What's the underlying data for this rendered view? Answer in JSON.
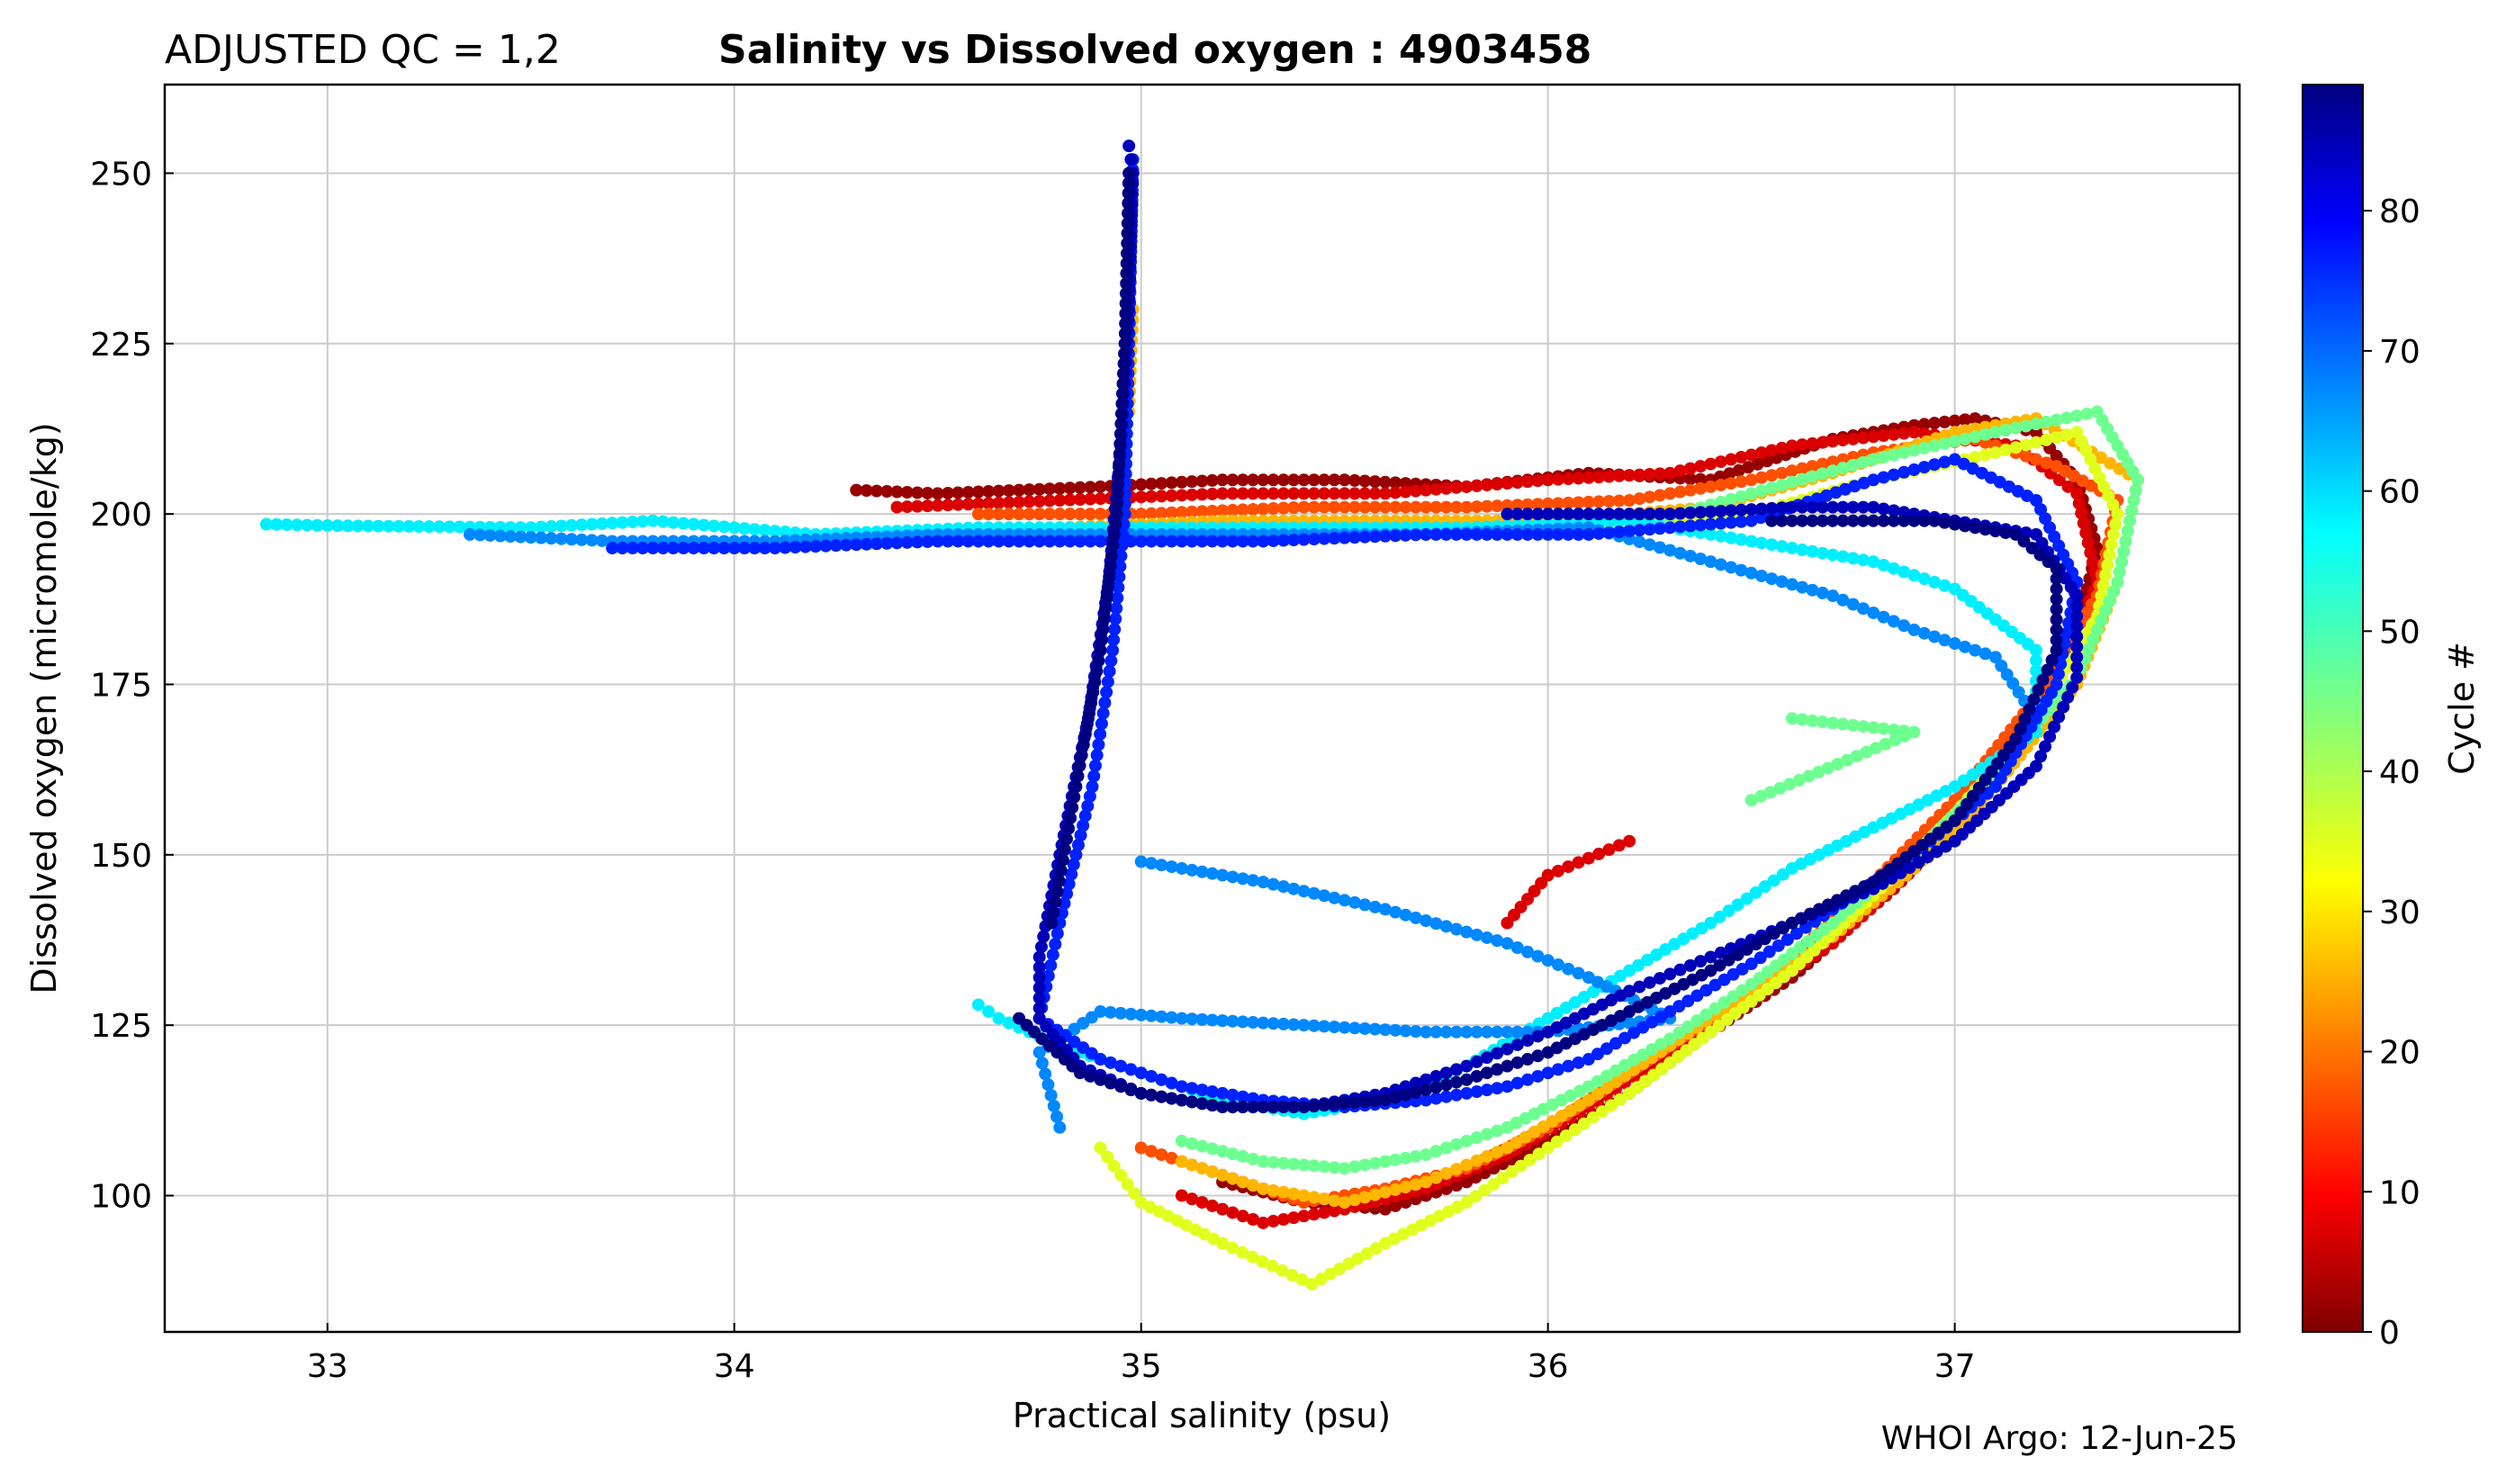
{
  "chart_data": {
    "type": "scatter",
    "title_left": "ADJUSTED QC = 1,2",
    "title": "Salinity vs Dissolved oxygen : 4903458",
    "xlabel": "Practical salinity  (psu)",
    "ylabel": "Dissolved oxygen  (micromole/kg)",
    "credit": "WHOI Argo: 12-Jun-25",
    "xlim": [
      32.6,
      37.7
    ],
    "ylim": [
      80,
      263
    ],
    "xticks": [
      33,
      34,
      35,
      36,
      37
    ],
    "yticks": [
      100,
      125,
      150,
      175,
      200,
      225,
      250
    ],
    "grid": true,
    "colorbar": {
      "label": "Cycle #",
      "colormap": "jet_r",
      "range": [
        0,
        89
      ],
      "ticks": [
        0,
        10,
        20,
        30,
        40,
        50,
        60,
        70,
        80
      ]
    },
    "series": [
      {
        "cycle": 2,
        "points": [
          [
            34.3,
            203.5
          ],
          [
            34.5,
            203
          ],
          [
            34.9,
            204
          ],
          [
            35.2,
            205
          ],
          [
            35.5,
            205
          ],
          [
            35.8,
            204
          ],
          [
            36.1,
            206
          ],
          [
            36.4,
            205
          ],
          [
            36.7,
            211
          ],
          [
            36.9,
            213
          ],
          [
            37.05,
            214
          ],
          [
            37.2,
            212
          ],
          [
            37.3,
            205
          ],
          [
            37.35,
            195
          ],
          [
            37.3,
            183
          ],
          [
            37.2,
            170
          ],
          [
            37.05,
            157
          ],
          [
            36.85,
            145
          ],
          [
            36.6,
            132
          ],
          [
            36.4,
            124
          ],
          [
            36.2,
            115
          ],
          [
            36.0,
            108
          ],
          [
            35.8,
            102
          ],
          [
            35.6,
            98
          ],
          [
            35.4,
            99
          ],
          [
            35.2,
            102
          ]
        ]
      },
      {
        "cycle": 8,
        "points": [
          [
            34.4,
            201
          ],
          [
            34.8,
            202
          ],
          [
            35.2,
            203
          ],
          [
            35.6,
            203
          ],
          [
            36.0,
            205
          ],
          [
            36.3,
            206
          ],
          [
            36.6,
            210
          ],
          [
            36.9,
            212
          ],
          [
            37.15,
            210
          ],
          [
            37.3,
            203
          ],
          [
            37.35,
            190
          ],
          [
            37.25,
            175
          ],
          [
            37.1,
            160
          ],
          [
            36.9,
            148
          ],
          [
            36.7,
            137
          ],
          [
            36.5,
            129
          ],
          [
            36.3,
            121
          ],
          [
            36.1,
            113
          ],
          [
            35.9,
            106
          ],
          [
            35.7,
            101
          ],
          [
            35.5,
            98
          ],
          [
            35.3,
            96
          ],
          [
            35.1,
            100
          ],
          [
            36.2,
            152
          ],
          [
            36.0,
            147
          ],
          [
            35.9,
            140
          ]
        ]
      },
      {
        "cycle": 18,
        "points": [
          [
            34.6,
            200
          ],
          [
            35.0,
            200
          ],
          [
            35.4,
            201
          ],
          [
            35.8,
            201
          ],
          [
            36.2,
            202
          ],
          [
            36.5,
            205
          ],
          [
            36.8,
            209
          ],
          [
            37.05,
            211
          ],
          [
            37.25,
            207
          ],
          [
            37.4,
            202
          ],
          [
            37.35,
            188
          ],
          [
            37.2,
            173
          ],
          [
            37.0,
            158
          ],
          [
            36.8,
            146
          ],
          [
            36.6,
            135
          ],
          [
            36.4,
            126
          ],
          [
            36.2,
            118
          ],
          [
            36.0,
            110
          ],
          [
            35.8,
            104
          ],
          [
            35.6,
            101
          ],
          [
            35.4,
            99
          ],
          [
            35.2,
            103
          ],
          [
            35.0,
            107
          ]
        ]
      },
      {
        "cycle": 27,
        "points": [
          [
            34.8,
            198
          ],
          [
            35.2,
            199
          ],
          [
            35.6,
            199
          ],
          [
            36.0,
            199
          ],
          [
            36.4,
            201
          ],
          [
            36.7,
            206
          ],
          [
            37.0,
            212
          ],
          [
            37.2,
            214
          ],
          [
            37.45,
            205
          ],
          [
            37.4,
            190
          ],
          [
            37.3,
            175
          ],
          [
            37.1,
            160
          ],
          [
            36.9,
            148
          ],
          [
            36.7,
            138
          ],
          [
            36.5,
            130
          ],
          [
            36.3,
            122
          ],
          [
            36.1,
            114
          ],
          [
            35.9,
            107
          ],
          [
            35.7,
            102
          ],
          [
            35.5,
            99
          ],
          [
            35.3,
            101
          ],
          [
            35.1,
            105
          ],
          [
            34.98,
            230
          ],
          [
            34.97,
            215
          ]
        ]
      },
      {
        "cycle": 36,
        "points": [
          [
            35.3,
            197
          ],
          [
            35.7,
            197
          ],
          [
            36.1,
            198
          ],
          [
            36.5,
            200
          ],
          [
            36.8,
            205
          ],
          [
            37.1,
            209
          ],
          [
            37.3,
            212
          ],
          [
            37.4,
            200
          ],
          [
            37.35,
            185
          ],
          [
            37.2,
            170
          ],
          [
            37.0,
            156
          ],
          [
            36.8,
            144
          ],
          [
            36.6,
            133
          ],
          [
            36.4,
            124
          ],
          [
            36.2,
            115
          ],
          [
            36.0,
            107
          ],
          [
            35.8,
            99
          ],
          [
            35.6,
            93
          ],
          [
            35.42,
            87
          ],
          [
            35.2,
            93
          ],
          [
            35.0,
            99
          ],
          [
            34.9,
            107
          ]
        ]
      },
      {
        "cycle": 46,
        "points": [
          [
            35.8,
            198
          ],
          [
            36.2,
            198
          ],
          [
            36.5,
            203
          ],
          [
            36.8,
            208
          ],
          [
            37.1,
            212
          ],
          [
            37.35,
            215
          ],
          [
            37.45,
            205
          ],
          [
            37.4,
            190
          ],
          [
            37.3,
            176
          ],
          [
            37.1,
            162
          ],
          [
            36.9,
            150
          ],
          [
            36.7,
            140
          ],
          [
            36.5,
            131
          ],
          [
            36.3,
            123
          ],
          [
            36.1,
            116
          ],
          [
            35.9,
            110
          ],
          [
            35.7,
            106
          ],
          [
            35.5,
            104
          ],
          [
            35.3,
            105
          ],
          [
            35.1,
            108
          ],
          [
            36.6,
            170
          ],
          [
            36.9,
            168
          ],
          [
            36.5,
            158
          ]
        ]
      },
      {
        "cycle": 57,
        "points": [
          [
            32.85,
            198.5
          ],
          [
            33.0,
            198.3
          ],
          [
            33.5,
            198
          ],
          [
            33.8,
            199
          ],
          [
            34.2,
            197
          ],
          [
            34.6,
            198
          ],
          [
            35.0,
            198
          ],
          [
            35.4,
            198
          ],
          [
            35.8,
            198
          ],
          [
            36.2,
            199
          ],
          [
            36.5,
            196
          ],
          [
            36.8,
            193
          ],
          [
            37.0,
            189
          ],
          [
            37.2,
            180
          ],
          [
            37.2,
            168
          ],
          [
            37.0,
            160
          ],
          [
            36.8,
            154
          ],
          [
            36.6,
            148
          ],
          [
            36.4,
            140
          ],
          [
            36.2,
            133
          ],
          [
            36.0,
            126
          ],
          [
            35.8,
            119
          ],
          [
            35.6,
            114
          ],
          [
            35.4,
            112
          ],
          [
            35.2,
            114
          ],
          [
            35.0,
            118
          ],
          [
            34.8,
            122
          ],
          [
            34.65,
            126
          ],
          [
            34.6,
            128
          ]
        ]
      },
      {
        "cycle": 66,
        "points": [
          [
            33.35,
            197
          ],
          [
            33.7,
            196
          ],
          [
            34.1,
            196
          ],
          [
            34.5,
            197
          ],
          [
            34.9,
            197
          ],
          [
            35.3,
            197
          ],
          [
            35.7,
            197
          ],
          [
            36.1,
            198
          ],
          [
            36.4,
            193
          ],
          [
            36.7,
            188
          ],
          [
            36.9,
            183
          ],
          [
            37.1,
            179
          ],
          [
            37.2,
            170
          ],
          [
            35.0,
            149
          ],
          [
            35.3,
            146
          ],
          [
            35.6,
            142
          ],
          [
            35.9,
            137
          ],
          [
            36.1,
            132
          ],
          [
            36.3,
            126
          ],
          [
            36.0,
            124
          ],
          [
            35.7,
            124
          ],
          [
            35.4,
            125
          ],
          [
            35.1,
            126
          ],
          [
            34.9,
            127
          ],
          [
            34.75,
            121
          ],
          [
            34.8,
            110
          ]
        ]
      },
      {
        "cycle": 75,
        "points": [
          [
            33.7,
            195
          ],
          [
            34.1,
            195
          ],
          [
            34.5,
            196
          ],
          [
            34.9,
            196
          ],
          [
            35.3,
            196
          ],
          [
            35.7,
            197
          ],
          [
            36.1,
            197
          ],
          [
            36.5,
            199
          ],
          [
            36.8,
            205
          ],
          [
            37.0,
            208
          ],
          [
            37.2,
            202
          ],
          [
            37.3,
            190
          ],
          [
            37.25,
            175
          ],
          [
            37.1,
            160
          ],
          [
            36.9,
            150
          ],
          [
            36.7,
            142
          ],
          [
            36.5,
            134
          ],
          [
            36.3,
            127
          ],
          [
            36.1,
            120
          ],
          [
            35.9,
            116
          ],
          [
            35.7,
            114
          ],
          [
            35.5,
            113
          ],
          [
            35.3,
            114
          ],
          [
            35.1,
            116
          ],
          [
            34.9,
            120
          ],
          [
            34.75,
            126
          ],
          [
            34.8,
            140
          ],
          [
            34.88,
            160
          ],
          [
            34.93,
            180
          ],
          [
            34.96,
            200
          ],
          [
            34.97,
            225
          ],
          [
            34.98,
            252
          ]
        ]
      },
      {
        "cycle": 84,
        "points": [
          [
            35.9,
            200
          ],
          [
            36.3,
            200
          ],
          [
            36.6,
            201
          ],
          [
            36.8,
            201
          ],
          [
            37.0,
            199
          ],
          [
            37.2,
            197
          ],
          [
            37.3,
            188
          ],
          [
            37.3,
            176
          ],
          [
            37.2,
            163
          ],
          [
            37.0,
            152
          ],
          [
            36.8,
            145
          ],
          [
            36.6,
            140
          ],
          [
            36.4,
            135
          ],
          [
            36.2,
            130
          ],
          [
            36.0,
            124
          ],
          [
            35.8,
            119
          ],
          [
            35.6,
            115
          ],
          [
            35.4,
            113
          ],
          [
            35.2,
            113
          ],
          [
            35.0,
            115
          ],
          [
            34.85,
            119
          ],
          [
            34.75,
            126
          ],
          [
            34.75,
            135
          ],
          [
            34.8,
            150
          ],
          [
            34.87,
            170
          ],
          [
            34.92,
            190
          ],
          [
            34.95,
            210
          ],
          [
            34.97,
            230
          ],
          [
            34.98,
            250
          ],
          [
            34.97,
            254
          ]
        ]
      },
      {
        "cycle": 89,
        "points": [
          [
            34.7,
            126
          ],
          [
            34.85,
            118
          ],
          [
            35.0,
            115
          ],
          [
            35.2,
            113
          ],
          [
            35.4,
            113
          ],
          [
            35.6,
            114
          ],
          [
            35.8,
            117
          ],
          [
            36.0,
            121
          ],
          [
            36.2,
            127
          ],
          [
            36.4,
            133
          ],
          [
            36.6,
            140
          ],
          [
            36.8,
            146
          ],
          [
            37.0,
            155
          ],
          [
            37.15,
            167
          ],
          [
            37.25,
            180
          ],
          [
            37.25,
            192
          ],
          [
            37.15,
            197
          ],
          [
            36.95,
            199
          ],
          [
            36.75,
            199
          ],
          [
            36.55,
            199
          ],
          [
            34.78,
            140
          ],
          [
            34.84,
            160
          ],
          [
            34.9,
            180
          ],
          [
            34.94,
            200
          ],
          [
            34.96,
            225
          ],
          [
            34.97,
            250
          ]
        ]
      }
    ]
  }
}
